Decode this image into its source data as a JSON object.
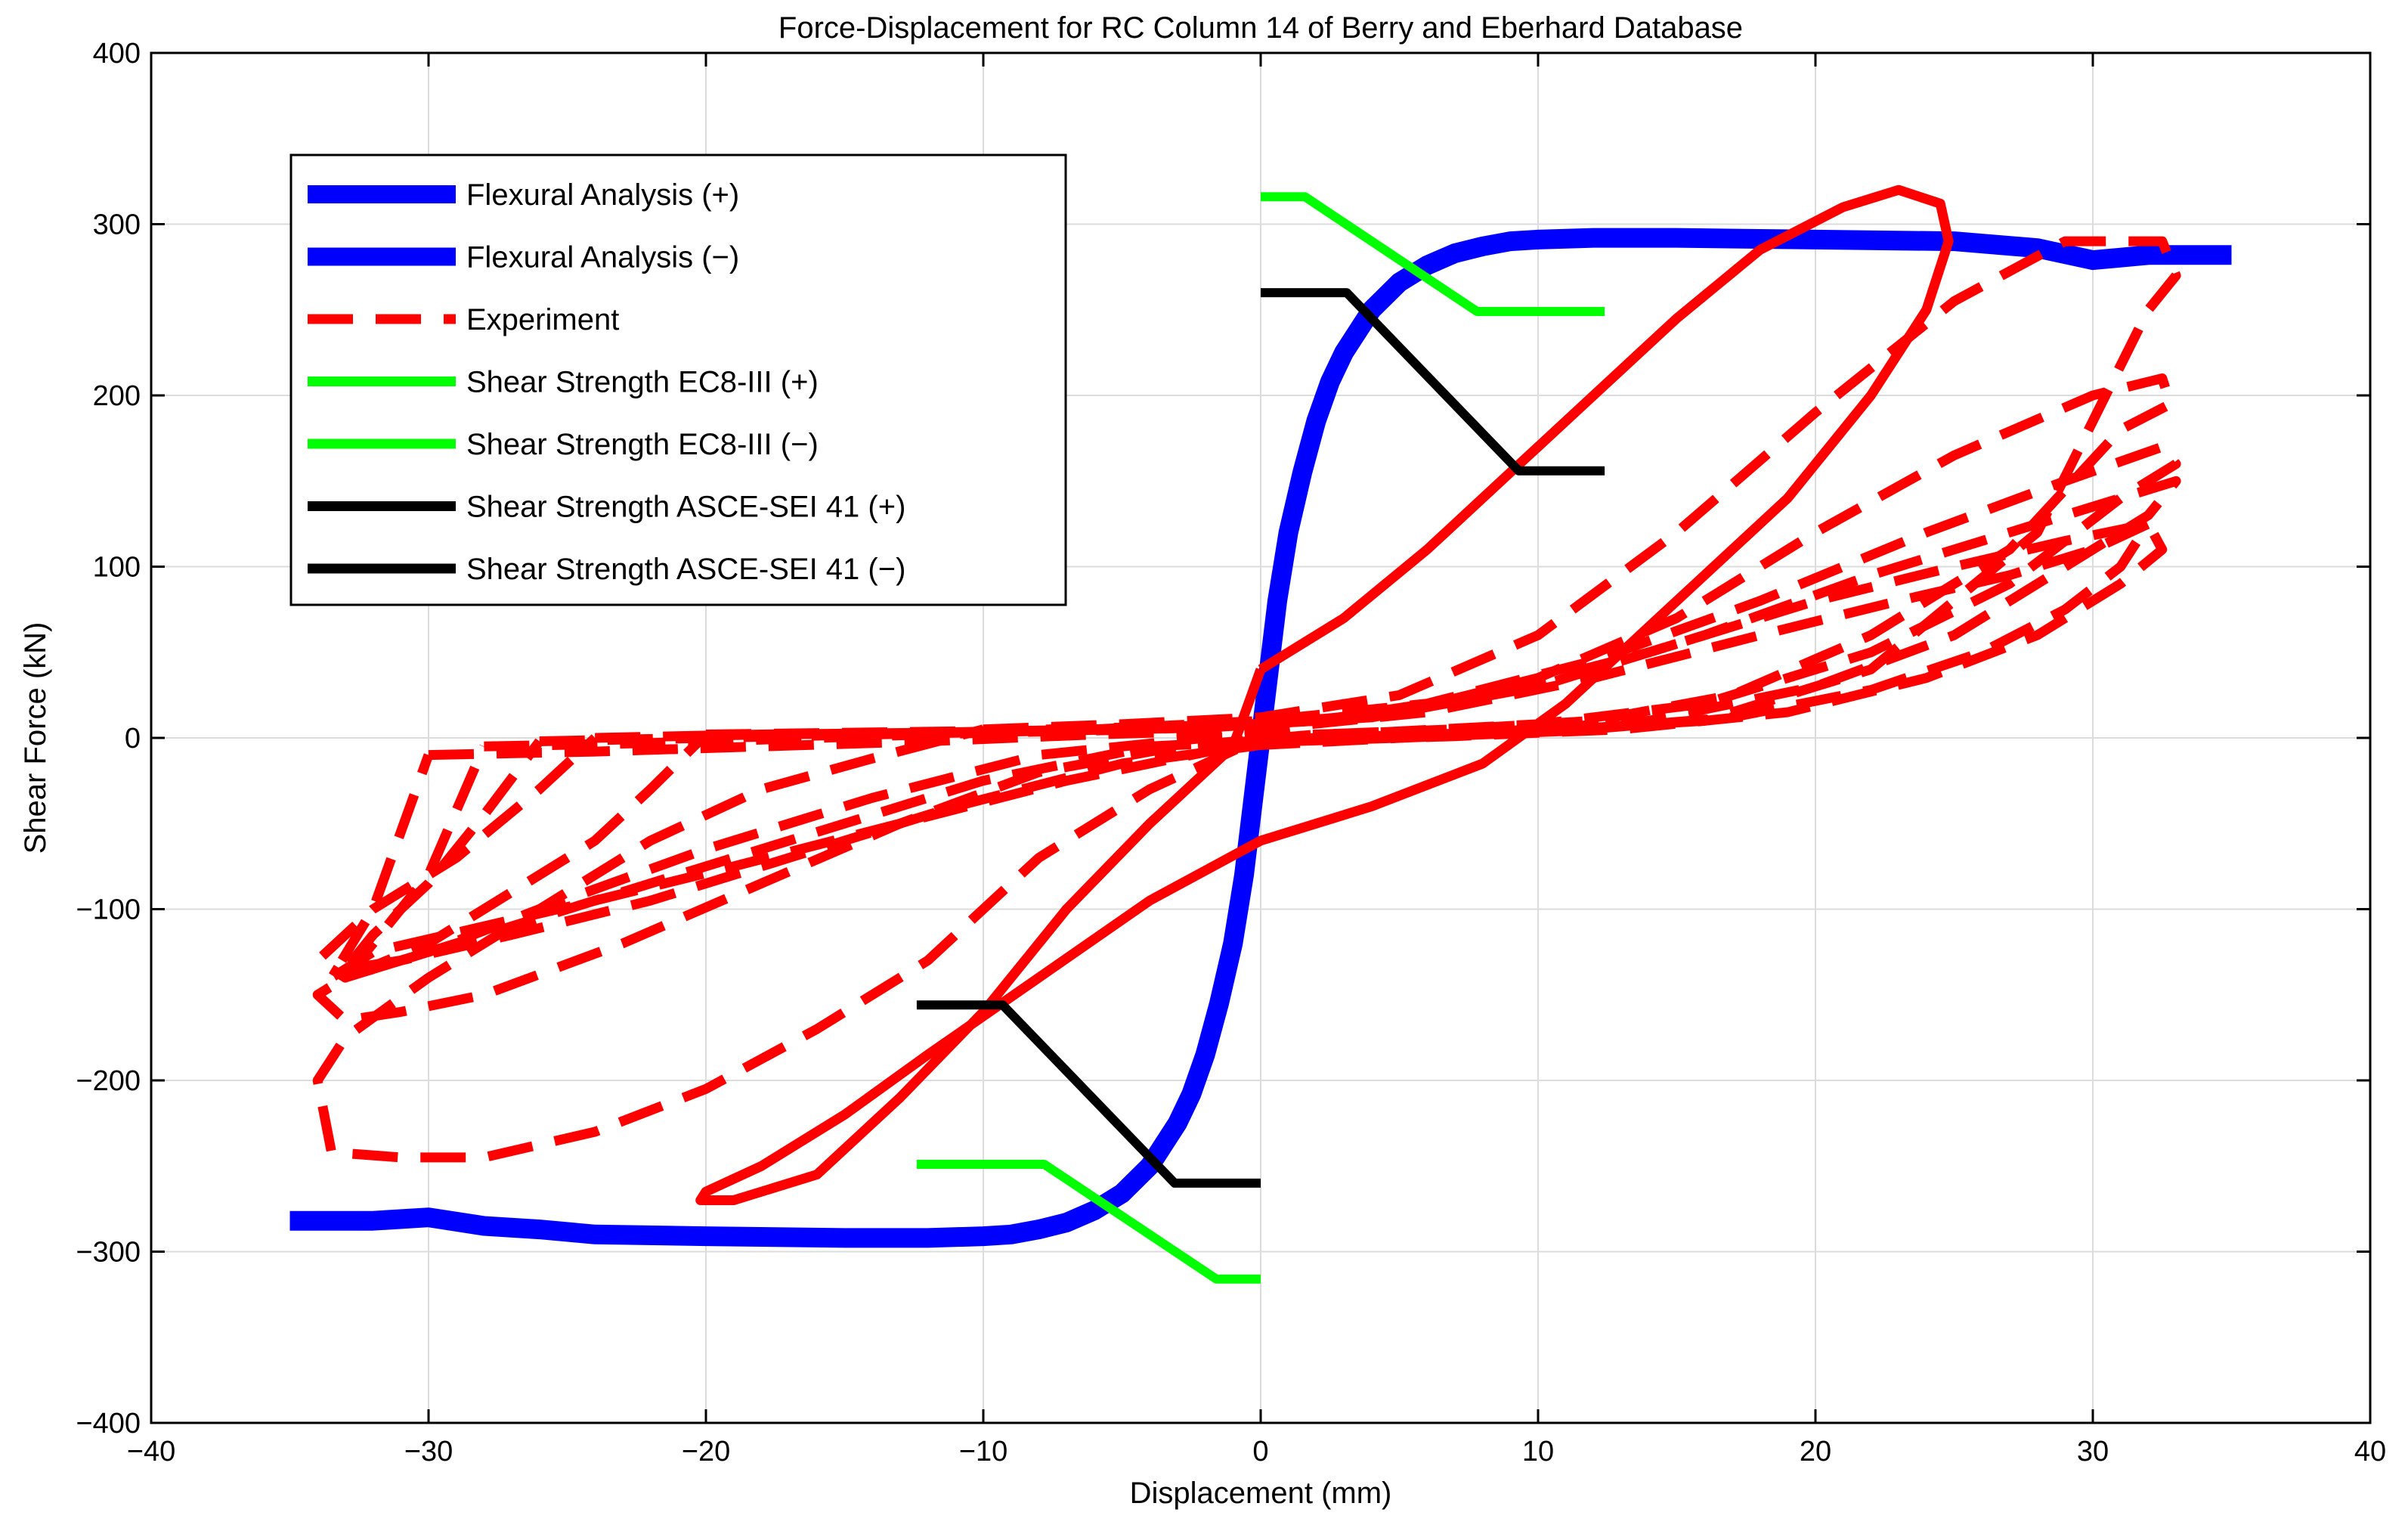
{
  "chart_data": {
    "type": "line",
    "title": "Force-Displacement for RC Column 14 of Berry and Eberhard Database",
    "xlabel": "Displacement (mm)",
    "ylabel": "Shear Force (kN)",
    "xlim": [
      -40,
      40
    ],
    "ylim": [
      -400,
      400
    ],
    "xticks": [
      -40,
      -30,
      -20,
      -10,
      0,
      10,
      20,
      30,
      40
    ],
    "yticks": [
      -400,
      -300,
      -200,
      -100,
      0,
      100,
      200,
      300,
      400
    ],
    "xtick_labels": [
      "−40",
      "−30",
      "−20",
      "−10",
      "0",
      "10",
      "20",
      "30",
      "40"
    ],
    "ytick_labels": [
      "−400",
      "−300",
      "−200",
      "−100",
      "0",
      "100",
      "200",
      "300",
      "400"
    ],
    "grid": true,
    "legend_position": "top-left",
    "series": [
      {
        "name": "Flexural Analysis (+)",
        "color": "#0000ff",
        "style": "solid",
        "x": [
          0,
          0.3,
          0.6,
          1.0,
          1.5,
          2.0,
          2.5,
          3.0,
          4.0,
          5.0,
          6.0,
          7.0,
          8.0,
          9.0,
          10.0,
          12.0,
          15.0,
          20.0,
          25.0,
          28.0,
          30.0,
          32.0,
          35.0
        ],
        "y": [
          0,
          40,
          80,
          120,
          155,
          185,
          208,
          225,
          250,
          266,
          276,
          283,
          287,
          290,
          291,
          292,
          292,
          291,
          290,
          286,
          279,
          282,
          282
        ]
      },
      {
        "name": "Flexural Analysis (−)",
        "color": "#0000ff",
        "style": "solid",
        "x": [
          0,
          -0.3,
          -0.6,
          -1.0,
          -1.5,
          -2.0,
          -2.5,
          -3.0,
          -4.0,
          -5.0,
          -6.0,
          -7.0,
          -8.0,
          -9.0,
          -10.0,
          -12.0,
          -15.0,
          -20.0,
          -24.0,
          -26.0,
          -28.0,
          -30.0,
          -32.0,
          -35.0
        ],
        "y": [
          0,
          -40,
          -80,
          -120,
          -155,
          -185,
          -208,
          -225,
          -250,
          -266,
          -276,
          -283,
          -287,
          -290,
          -291,
          -292,
          -292,
          -291,
          -290,
          -287,
          -285,
          -280,
          -282,
          -282
        ]
      },
      {
        "name": "Experiment",
        "color": "#ff0000",
        "style": "dashed",
        "segments": [
          {
            "style": "solid",
            "x": [
              0,
              3,
              6,
              9,
              12,
              15,
              18,
              21,
              23,
              24.5,
              24.8,
              24,
              22,
              19,
              15,
              11,
              8,
              4,
              0,
              -4,
              -8,
              -12,
              -15,
              -18,
              -20,
              -20.2,
              -19,
              -16,
              -13,
              -10,
              -7,
              -4,
              -1,
              0
            ],
            "y": [
              40,
              70,
              110,
              155,
              200,
              245,
              285,
              310,
              320,
              312,
              290,
              250,
              200,
              140,
              80,
              20,
              -15,
              -40,
              -60,
              -95,
              -140,
              -185,
              -220,
              -250,
              -265,
              -270,
              -270,
              -255,
              -210,
              -160,
              -100,
              -50,
              -5,
              40
            ]
          },
          {
            "style": "dashed",
            "x": [
              -10,
              -5,
              0,
              5,
              10,
              15,
              20,
              25,
              29,
              32.5,
              33,
              32,
              28,
              22,
              16,
              10,
              4,
              0,
              -4,
              -8,
              -12,
              -16,
              -20,
              -24,
              -28,
              -31,
              -33.5,
              -34,
              -33,
              -30,
              -26,
              -22,
              -18,
              -14,
              -10
            ],
            "y": [
              5,
              8,
              12,
              25,
              60,
              120,
              190,
              255,
              290,
              290,
              270,
              250,
              120,
              40,
              10,
              4,
              2,
              0,
              -30,
              -70,
              -130,
              -170,
              -205,
              -230,
              -245,
              -245,
              -242,
              -200,
              -175,
              -140,
              -100,
              -60,
              -30,
              -12,
              5
            ]
          },
          {
            "style": "dashed",
            "x": [
              -20,
              -15,
              -10,
              -5,
              0,
              5,
              10,
              15,
              20,
              25,
              30,
              32.5,
              32.8,
              31,
              27,
              22,
              17,
              12,
              7,
              2,
              -3,
              -8,
              -13,
              -18,
              -23,
              -28,
              -31,
              -33,
              -34,
              -33,
              -30,
              -27,
              -24,
              -22,
              -20
            ],
            "y": [
              2,
              3,
              4,
              6,
              8,
              15,
              35,
              70,
              120,
              165,
              200,
              210,
              195,
              180,
              110,
              60,
              25,
              10,
              5,
              2,
              -5,
              -20,
              -50,
              -85,
              -120,
              -150,
              -160,
              -165,
              -150,
              -140,
              -120,
              -90,
              -60,
              -30,
              2
            ]
          },
          {
            "style": "dashed",
            "x": [
              -24,
              -18,
              -12,
              -6,
              0,
              6,
              12,
              18,
              24,
              29,
              32.5,
              33,
              31,
              27,
              22,
              16,
              10,
              4,
              -2,
              -8,
              -14,
              -20,
              -26,
              -30,
              -33,
              -34,
              -32,
              -29,
              -26,
              -24
            ],
            "y": [
              0,
              2,
              3,
              5,
              10,
              20,
              45,
              80,
              120,
              150,
              170,
              160,
              140,
              90,
              50,
              20,
              8,
              3,
              0,
              -10,
              -35,
              -65,
              -100,
              -125,
              -140,
              -130,
              -100,
              -70,
              -30,
              0
            ]
          },
          {
            "style": "dashed",
            "x": [
              -26,
              -20,
              -14,
              -8,
              -2,
              4,
              10,
              16,
              22,
              27,
              31,
              33,
              32,
              29,
              25,
              20,
              14,
              8,
              2,
              -4,
              -10,
              -16,
              -22,
              -27,
              -31,
              -33,
              -32,
              -30,
              -28,
              -26
            ],
            "y": [
              -2,
              0,
              2,
              4,
              6,
              12,
              30,
              60,
              95,
              120,
              140,
              150,
              130,
              100,
              60,
              30,
              10,
              3,
              0,
              -5,
              -25,
              -55,
              -85,
              -110,
              -130,
              -135,
              -115,
              -85,
              -45,
              -2
            ]
          },
          {
            "style": "dashed",
            "x": [
              -28,
              -22,
              -16,
              -10,
              -4,
              2,
              8,
              14,
              20,
              25,
              29,
              32,
              32.5,
              31,
              28,
              24,
              19,
              13,
              7,
              1,
              -5,
              -11,
              -17,
              -22,
              -27,
              -31,
              -33,
              -32,
              -30,
              -28
            ],
            "y": [
              -5,
              -3,
              0,
              3,
              5,
              10,
              25,
              50,
              80,
              100,
              115,
              125,
              110,
              90,
              60,
              35,
              15,
              5,
              1,
              -2,
              -15,
              -40,
              -70,
              -95,
              -115,
              -130,
              -140,
              -120,
              -80,
              -5
            ]
          },
          {
            "style": "dashed",
            "x": [
              -30,
              -24,
              -18,
              -12,
              -6,
              0,
              6,
              12,
              18,
              23,
              27,
              30,
              32,
              31,
              29,
              26,
              22,
              17,
              11,
              5,
              -1,
              -7,
              -13,
              -19,
              -24,
              -28,
              -32,
              -33.5,
              -32,
              -30
            ],
            "y": [
              -10,
              -8,
              -5,
              -2,
              2,
              5,
              15,
              35,
              60,
              80,
              95,
              110,
              125,
              100,
              75,
              50,
              28,
              12,
              4,
              0,
              -5,
              -25,
              -50,
              -75,
              -95,
              -110,
              -125,
              -140,
              -100,
              -10
            ]
          }
        ]
      },
      {
        "name": "Shear Strength EC8-III (+)",
        "color": "#00ff00",
        "style": "solid",
        "x": [
          0,
          1.6,
          7.8,
          12.4
        ],
        "y": [
          316,
          316,
          249,
          249
        ]
      },
      {
        "name": "Shear Strength EC8-III (−)",
        "color": "#00ff00",
        "style": "solid",
        "x": [
          0,
          -1.6,
          -7.8,
          -12.4
        ],
        "y": [
          -316,
          -316,
          -249,
          -249
        ]
      },
      {
        "name": "Shear Strength ASCE-SEI 41 (+)",
        "color": "#000000",
        "style": "solid",
        "x": [
          0,
          3.1,
          9.3,
          12.4
        ],
        "y": [
          260,
          260,
          156,
          156
        ]
      },
      {
        "name": "Shear Strength ASCE-SEI 41 (−)",
        "color": "#000000",
        "style": "solid",
        "x": [
          0,
          -3.1,
          -9.3,
          -12.4
        ],
        "y": [
          -260,
          -260,
          -156,
          -156
        ]
      }
    ]
  }
}
